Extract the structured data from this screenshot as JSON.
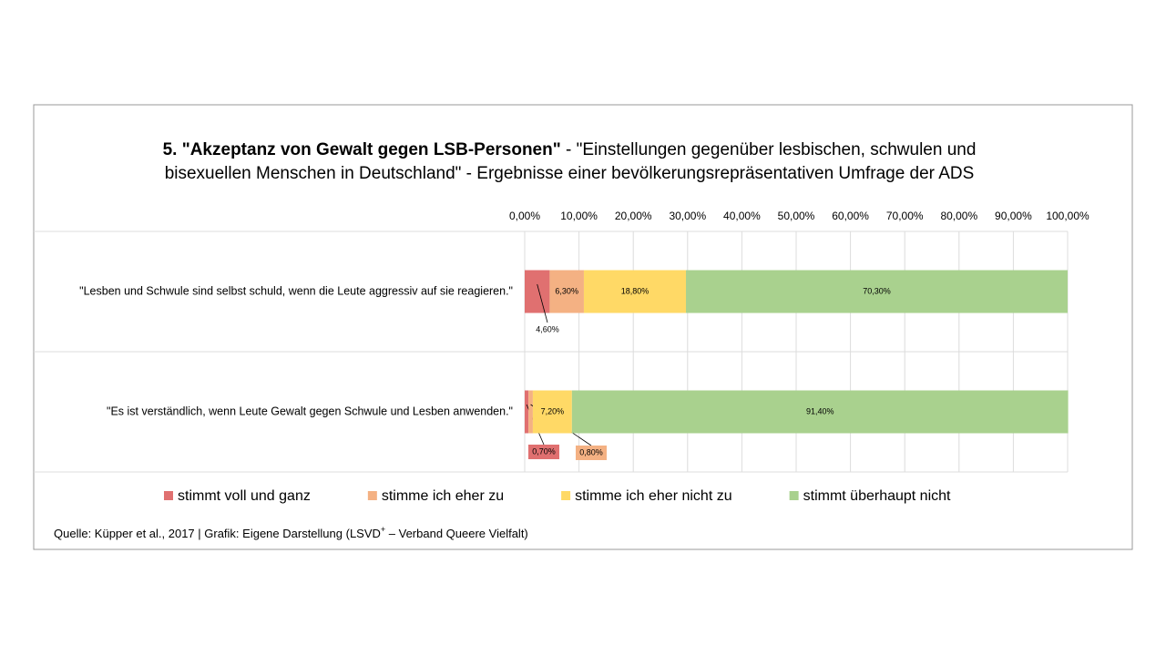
{
  "chart_data": {
    "type": "stacked-barh",
    "title": "5. \"Akzeptanz von Gewalt gegen LSB-Personen\"",
    "subtitle": " - \"Einstellungen gegenüber lesbischen, schwulen und bisexuellen Menschen in Deutschland\" - Ergebnisse einer bevölkerungsrepräsentativen Umfrage der ADS",
    "categories": [
      "\"Lesben und Schwule sind selbst schuld, wenn die Leute aggressiv auf sie reagieren.\"",
      "\"Es ist verständlich, wenn Leute Gewalt gegen Schwule und Lesben anwenden.\""
    ],
    "series": [
      {
        "name": "stimmt voll und ganz",
        "color": "#e07070",
        "values": [
          4.6,
          0.7
        ],
        "value_labels": [
          "4,60%",
          "0,70%"
        ]
      },
      {
        "name": "stimme ich eher zu",
        "color": "#f4b183",
        "values": [
          6.3,
          0.8
        ],
        "value_labels": [
          "6,30%",
          "0,80%"
        ]
      },
      {
        "name": "stimme ich eher nicht zu",
        "color": "#ffd966",
        "values": [
          18.8,
          7.2
        ],
        "value_labels": [
          "18,80%",
          "7,20%"
        ]
      },
      {
        "name": "stimmt überhaupt nicht",
        "color": "#a9d18e",
        "values": [
          70.3,
          91.4
        ],
        "value_labels": [
          "70,30%",
          "91,40%"
        ]
      }
    ],
    "xlim": [
      0,
      100
    ],
    "xticks": [
      {
        "value": 0,
        "label": "0,00%"
      },
      {
        "value": 10,
        "label": "10,00%"
      },
      {
        "value": 20,
        "label": "20,00%"
      },
      {
        "value": 30,
        "label": "30,00%"
      },
      {
        "value": 40,
        "label": "40,00%"
      },
      {
        "value": 50,
        "label": "50,00%"
      },
      {
        "value": 60,
        "label": "60,00%"
      },
      {
        "value": 70,
        "label": "70,00%"
      },
      {
        "value": 80,
        "label": "80,00%"
      },
      {
        "value": 90,
        "label": "90,00%"
      },
      {
        "value": 100,
        "label": "100,00%"
      }
    ],
    "grid": true,
    "legend": "bottom",
    "source": [
      "Quelle: Küpper et al., 2017 | Grafik: Eigene Darstellung (LSVD",
      "+",
      "  – Verband Queere Vielfalt)"
    ]
  }
}
